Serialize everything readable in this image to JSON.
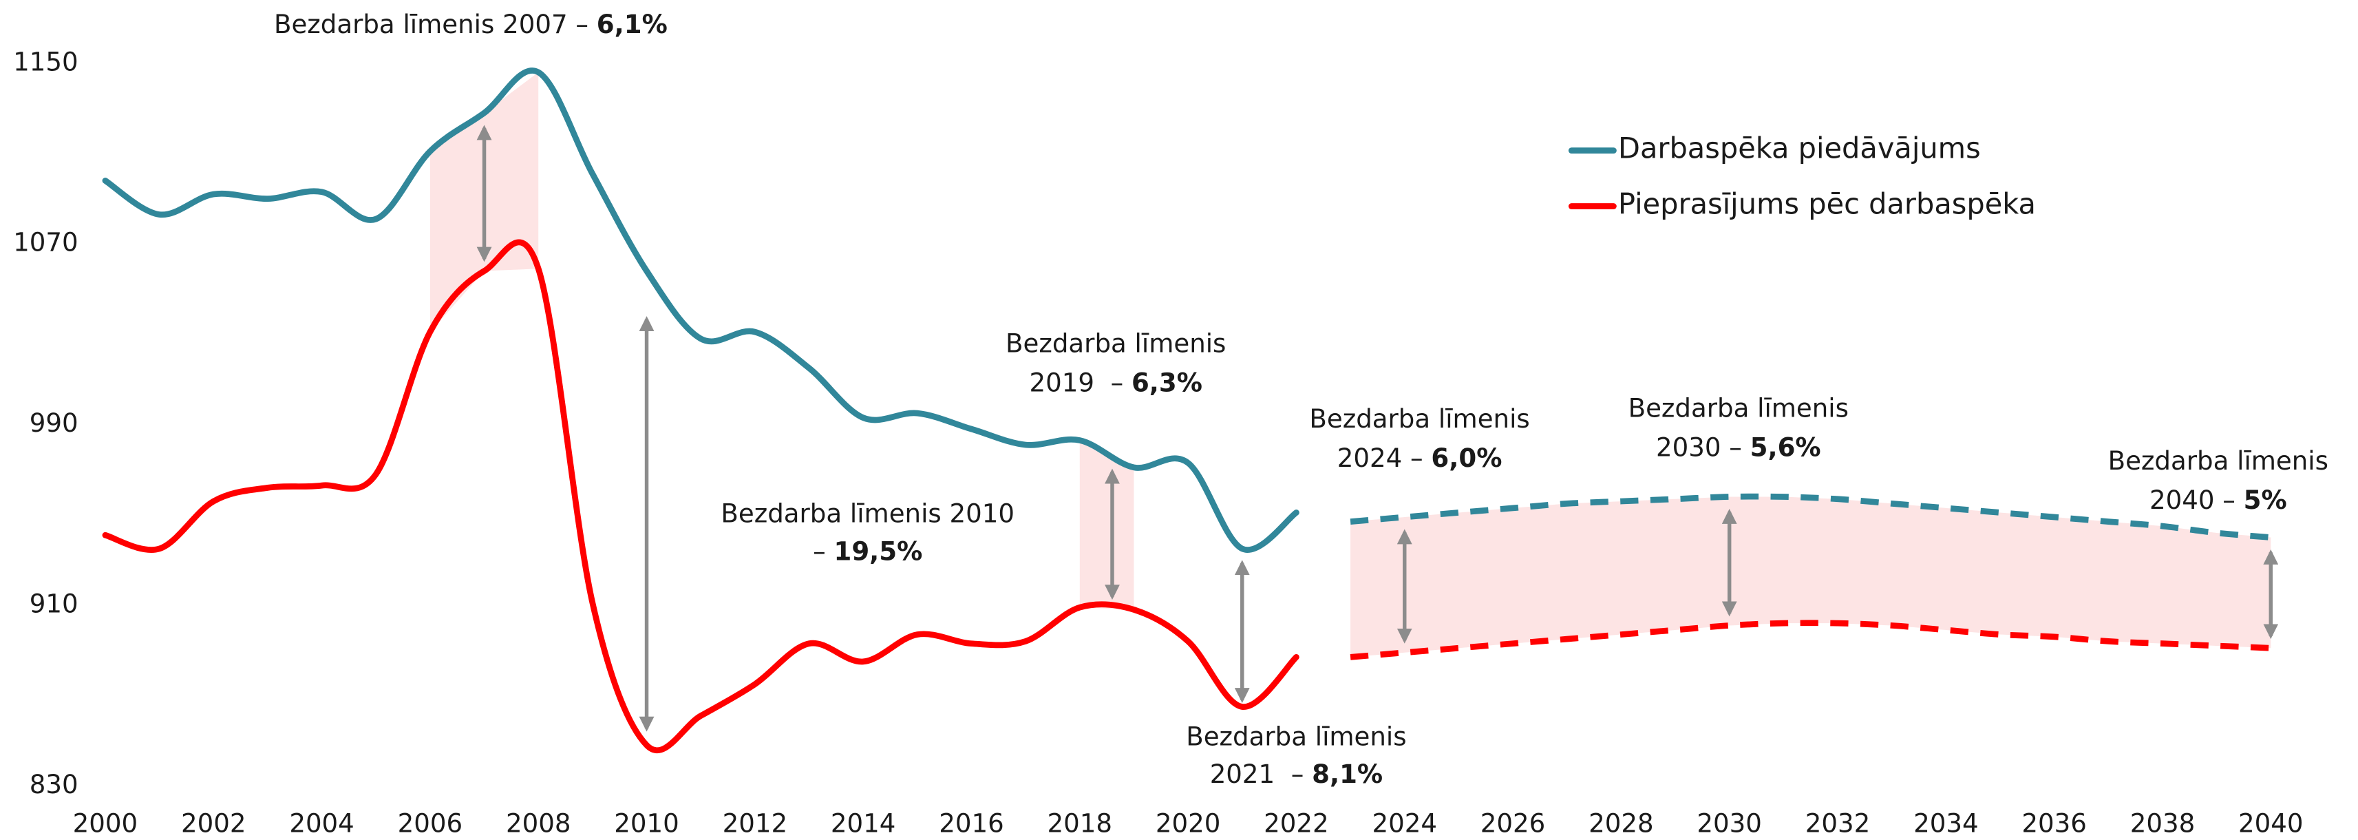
{
  "chart_data": {
    "type": "line",
    "x": [
      2000,
      2001,
      2002,
      2003,
      2004,
      2005,
      2006,
      2007,
      2008,
      2009,
      2010,
      2011,
      2012,
      2013,
      2014,
      2015,
      2016,
      2017,
      2018,
      2019,
      2020,
      2021,
      2022,
      2023,
      2024,
      2025,
      2026,
      2027,
      2028,
      2029,
      2030,
      2031,
      2032,
      2033,
      2034,
      2035,
      2036,
      2037,
      2038,
      2039,
      2040
    ],
    "xlim": [
      2000,
      2040
    ],
    "xticks": [
      2000,
      2002,
      2004,
      2006,
      2008,
      2010,
      2012,
      2014,
      2016,
      2018,
      2020,
      2022,
      2024,
      2026,
      2028,
      2030,
      2032,
      2034,
      2036,
      2038,
      2040
    ],
    "ylim": [
      830,
      1150
    ],
    "yticks": [
      830,
      910,
      990,
      1070,
      1150
    ],
    "dashed_from": 2023,
    "legend": "upper right",
    "series": [
      {
        "name": "Darbaspēka piedāvājums",
        "color": "#31879a",
        "values": [
          1098,
          1083,
          1092,
          1090,
          1093,
          1081,
          1111,
          1128,
          1146,
          1101,
          1058,
          1028,
          1031,
          1015,
          993,
          995,
          988,
          981,
          983,
          971,
          973,
          935,
          951,
          947,
          949,
          951,
          953,
          955,
          956,
          957,
          958,
          958,
          957,
          955,
          953,
          951,
          949,
          947,
          945,
          942,
          940
        ]
      },
      {
        "name": "Pieprasījums pēc darbaspēka",
        "color": "#ff0000",
        "values": [
          941,
          935,
          956,
          962,
          963,
          968,
          1031,
          1058,
          1059,
          911,
          848,
          861,
          875,
          893,
          885,
          897,
          893,
          894,
          909,
          908,
          894,
          865,
          887,
          887,
          889,
          891,
          893,
          895,
          897,
          899,
          901,
          902,
          902,
          901,
          899,
          897,
          896,
          894,
          893,
          892,
          891
        ]
      }
    ],
    "annotations": [
      {
        "lines": [
          "Bezdarba līmenis 2007 – "
        ],
        "bold": "6,1%"
      },
      {
        "lines": [
          "Bezdarba līmenis 2010",
          "– "
        ],
        "bold": "19,5%"
      },
      {
        "lines": [
          "Bezdarba līmenis",
          "2019  – "
        ],
        "bold": "6,3%"
      },
      {
        "lines": [
          "Bezdarba līmenis",
          "2021  – "
        ],
        "bold": "8,1%"
      },
      {
        "lines": [
          "Bezdarba līmenis",
          "2024 – "
        ],
        "bold": "6,0%"
      },
      {
        "lines": [
          "Bezdarba līmenis",
          "2030 – "
        ],
        "bold": "5,6%"
      },
      {
        "lines": [
          "Bezdarba līmenis",
          "2040 – "
        ],
        "bold": "5%"
      }
    ]
  }
}
